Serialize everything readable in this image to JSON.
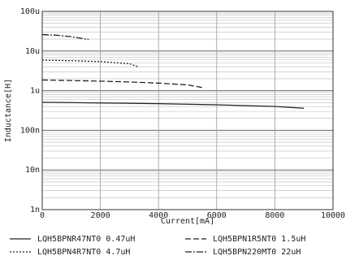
{
  "chart_data": {
    "type": "line",
    "xlabel": "Current[mA]",
    "ylabel": "Inductance[H]",
    "xlim": [
      0,
      10000
    ],
    "xticks": [
      0,
      2000,
      4000,
      6000,
      8000,
      10000
    ],
    "ylim": [
      1e-09,
      0.0001
    ],
    "log_y": true,
    "yticks": [
      {
        "value": 1e-09,
        "label": "1n"
      },
      {
        "value": 1e-08,
        "label": "10n"
      },
      {
        "value": 1e-07,
        "label": "100n"
      },
      {
        "value": 1e-06,
        "label": "1u"
      },
      {
        "value": 1e-05,
        "label": "10u"
      },
      {
        "value": 0.0001,
        "label": "100u"
      }
    ],
    "grid": true,
    "legend": "bottom",
    "series": [
      {
        "name": "LQH5BPNR47NT0 0.47uH",
        "color": "#222222",
        "line_style": "solid",
        "x": [
          0,
          2000,
          4000,
          6000,
          8000,
          9000
        ],
        "values": [
          5.1e-07,
          4.9e-07,
          4.7e-07,
          4.4e-07,
          4e-07,
          3.6e-07
        ]
      },
      {
        "name": "LQH5BPN1R5NT0 1.5uH",
        "color": "#222222",
        "line_style": "dashed",
        "x": [
          0,
          1000,
          2000,
          3000,
          4000,
          5000,
          5500
        ],
        "values": [
          1.86e-06,
          1.8e-06,
          1.74e-06,
          1.66e-06,
          1.55e-06,
          1.4e-06,
          1.2e-06
        ]
      },
      {
        "name": "LQH5BPN4R7NT0 4.7uH",
        "color": "#222222",
        "line_style": "dotted",
        "x": [
          0,
          1000,
          2000,
          3000,
          3300
        ],
        "values": [
          5.9e-06,
          5.7e-06,
          5.4e-06,
          4.8e-06,
          4e-06
        ]
      },
      {
        "name": "LQH5BPN220MT0 22uH",
        "color": "#222222",
        "line_style": "dashdot",
        "x": [
          0,
          500,
          1000,
          1600
        ],
        "values": [
          2.6e-05,
          2.5e-05,
          2.3e-05,
          1.95e-05
        ]
      }
    ]
  }
}
